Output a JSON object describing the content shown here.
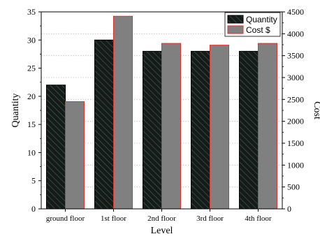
{
  "chart_data": {
    "type": "bar",
    "categories": [
      "ground floor",
      "1st floor",
      "2nd floor",
      "3rd floor",
      "4th floor"
    ],
    "series": [
      {
        "name": "Quantity",
        "axis": "left",
        "values": [
          22,
          30,
          28,
          28,
          28
        ],
        "color": "#1a1a1a",
        "pattern": "diagonal-hatch-green",
        "edge_color": "#000000"
      },
      {
        "name": "Cost $",
        "axis": "right",
        "values": [
          2450,
          4400,
          3780,
          3740,
          3780
        ],
        "color": "#808080",
        "edge_color": "#e03030"
      }
    ],
    "xlabel": "Level",
    "ylabel": "Quantity",
    "y2label": "Cost",
    "ylim": [
      0,
      35
    ],
    "y2lim": [
      0,
      4500
    ],
    "yticks": [
      "0",
      "5",
      "10",
      "15",
      "20",
      "25",
      "30",
      "35"
    ],
    "y2ticks": [
      "0",
      "500",
      "1000",
      "1500",
      "2000",
      "2500",
      "3000",
      "3500",
      "4000",
      "4500"
    ],
    "legend_position": "top-right",
    "grid": "dotted horizontal (right axis)"
  }
}
